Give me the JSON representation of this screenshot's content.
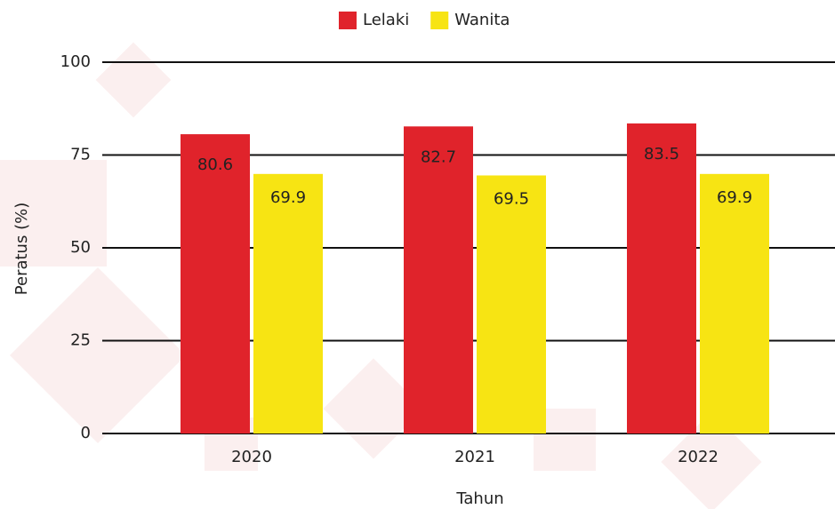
{
  "chart_data": {
    "type": "bar",
    "categories": [
      "2020",
      "2021",
      "2022"
    ],
    "series": [
      {
        "name": "Lelaki",
        "color": "#e0232b",
        "values": [
          80.6,
          82.7,
          83.5
        ]
      },
      {
        "name": "Wanita",
        "color": "#f7e413",
        "values": [
          69.9,
          69.5,
          69.9
        ]
      }
    ],
    "ylim": [
      0,
      100
    ],
    "yticks": [
      0,
      25,
      50,
      75,
      100
    ],
    "grid": true,
    "x_label": "Tahun",
    "y_label": "Peratus (%)",
    "legend": "top"
  }
}
